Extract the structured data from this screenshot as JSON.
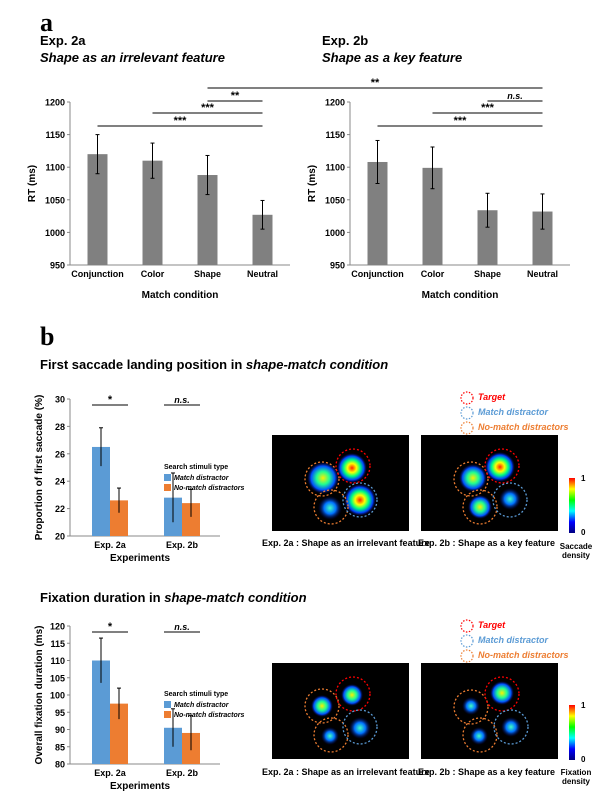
{
  "panel_a": {
    "letter": "a",
    "left": {
      "title": "Exp. 2a",
      "subtitle": "Shape as an irrelevant feature"
    },
    "right": {
      "title": "Exp. 2b",
      "subtitle": "Shape as a key feature"
    },
    "cross_significance": "**"
  },
  "panel_b": {
    "letter": "b",
    "saccade_title_plain": "First saccade landing position in ",
    "saccade_title_italic": "shape-match condition",
    "fixation_title_plain": "Fixation duration in ",
    "fixation_title_italic": "shape-match condition",
    "heatmap_legend": {
      "target": "Target",
      "match": "Match distractor",
      "nomatch": "No-match distractors"
    },
    "heatmap_labels": {
      "left": "Exp. 2a : Shape as an irrelevant  feature",
      "right": "Exp. 2b : Shape as a key  feature"
    },
    "colorbar": {
      "max": "1",
      "min": "0",
      "saccade_label_1": "Saccade",
      "saccade_label_2": "density",
      "fixation_label_1": "Fixation",
      "fixation_label_2": "density"
    }
  },
  "colors": {
    "bar_gray": "#808080",
    "match_blue": "#5b9bd5",
    "nomatch_orange": "#ed7d31",
    "target_red": "#ff0000"
  },
  "chart_data": [
    {
      "type": "bar",
      "title": "Exp. 2a",
      "categories": [
        "Conjunction",
        "Color",
        "Shape",
        "Neutral"
      ],
      "values": [
        1120,
        1110,
        1088,
        1027
      ],
      "errors": [
        30,
        27,
        30,
        22
      ],
      "xlabel": "Match condition",
      "ylabel": "RT (ms)",
      "ylim": [
        950,
        1200
      ],
      "yticks": [
        950,
        1000,
        1050,
        1100,
        1150,
        1200
      ],
      "significance": [
        {
          "from": "Conjunction",
          "to": "Neutral",
          "label": "***"
        },
        {
          "from": "Color",
          "to": "Neutral",
          "label": "***"
        },
        {
          "from": "Shape",
          "to": "Neutral",
          "label": "**"
        }
      ]
    },
    {
      "type": "bar",
      "title": "Exp. 2b",
      "categories": [
        "Conjunction",
        "Color",
        "Shape",
        "Neutral"
      ],
      "values": [
        1108,
        1099,
        1034,
        1032
      ],
      "errors": [
        33,
        32,
        26,
        27
      ],
      "xlabel": "Match condition",
      "ylabel": "RT (ms)",
      "ylim": [
        950,
        1200
      ],
      "yticks": [
        950,
        1000,
        1050,
        1100,
        1150,
        1200
      ],
      "significance": [
        {
          "from": "Conjunction",
          "to": "Neutral",
          "label": "***"
        },
        {
          "from": "Color",
          "to": "Neutral",
          "label": "***"
        },
        {
          "from": "Shape",
          "to": "Neutral",
          "label": "n.s."
        }
      ]
    },
    {
      "type": "bar",
      "categories": [
        "Exp. 2a",
        "Exp. 2b"
      ],
      "series": [
        {
          "name": "Match distractor",
          "values": [
            26.5,
            22.8
          ],
          "errors": [
            1.4,
            1.8
          ]
        },
        {
          "name": "No-match distractors",
          "values": [
            22.6,
            22.4
          ],
          "errors": [
            0.9,
            1.0
          ]
        }
      ],
      "legend_title": "Search stimuli type",
      "xlabel": "Experiments",
      "ylabel": "Proportion of first saccade (%)",
      "ylim": [
        20,
        30
      ],
      "yticks": [
        20,
        22,
        24,
        26,
        28,
        30
      ],
      "significance": [
        {
          "group": "Exp. 2a",
          "label": "*"
        },
        {
          "group": "Exp. 2b",
          "label": "n.s."
        }
      ]
    },
    {
      "type": "bar",
      "categories": [
        "Exp. 2a",
        "Exp. 2b"
      ],
      "series": [
        {
          "name": "Match distractor",
          "values": [
            110,
            90.5
          ],
          "errors": [
            6.5,
            5.5
          ]
        },
        {
          "name": "No-match distractors",
          "values": [
            97.5,
            89
          ],
          "errors": [
            4.5,
            5
          ]
        }
      ],
      "legend_title": "Search stimuli type",
      "xlabel": "Experiments",
      "ylabel": "Overall fixation duration (ms)",
      "ylim": [
        80,
        120
      ],
      "yticks": [
        80,
        85,
        90,
        95,
        100,
        105,
        110,
        115,
        120
      ],
      "significance": [
        {
          "group": "Exp. 2a",
          "label": "*"
        },
        {
          "group": "Exp. 2b",
          "label": "n.s."
        }
      ]
    }
  ]
}
